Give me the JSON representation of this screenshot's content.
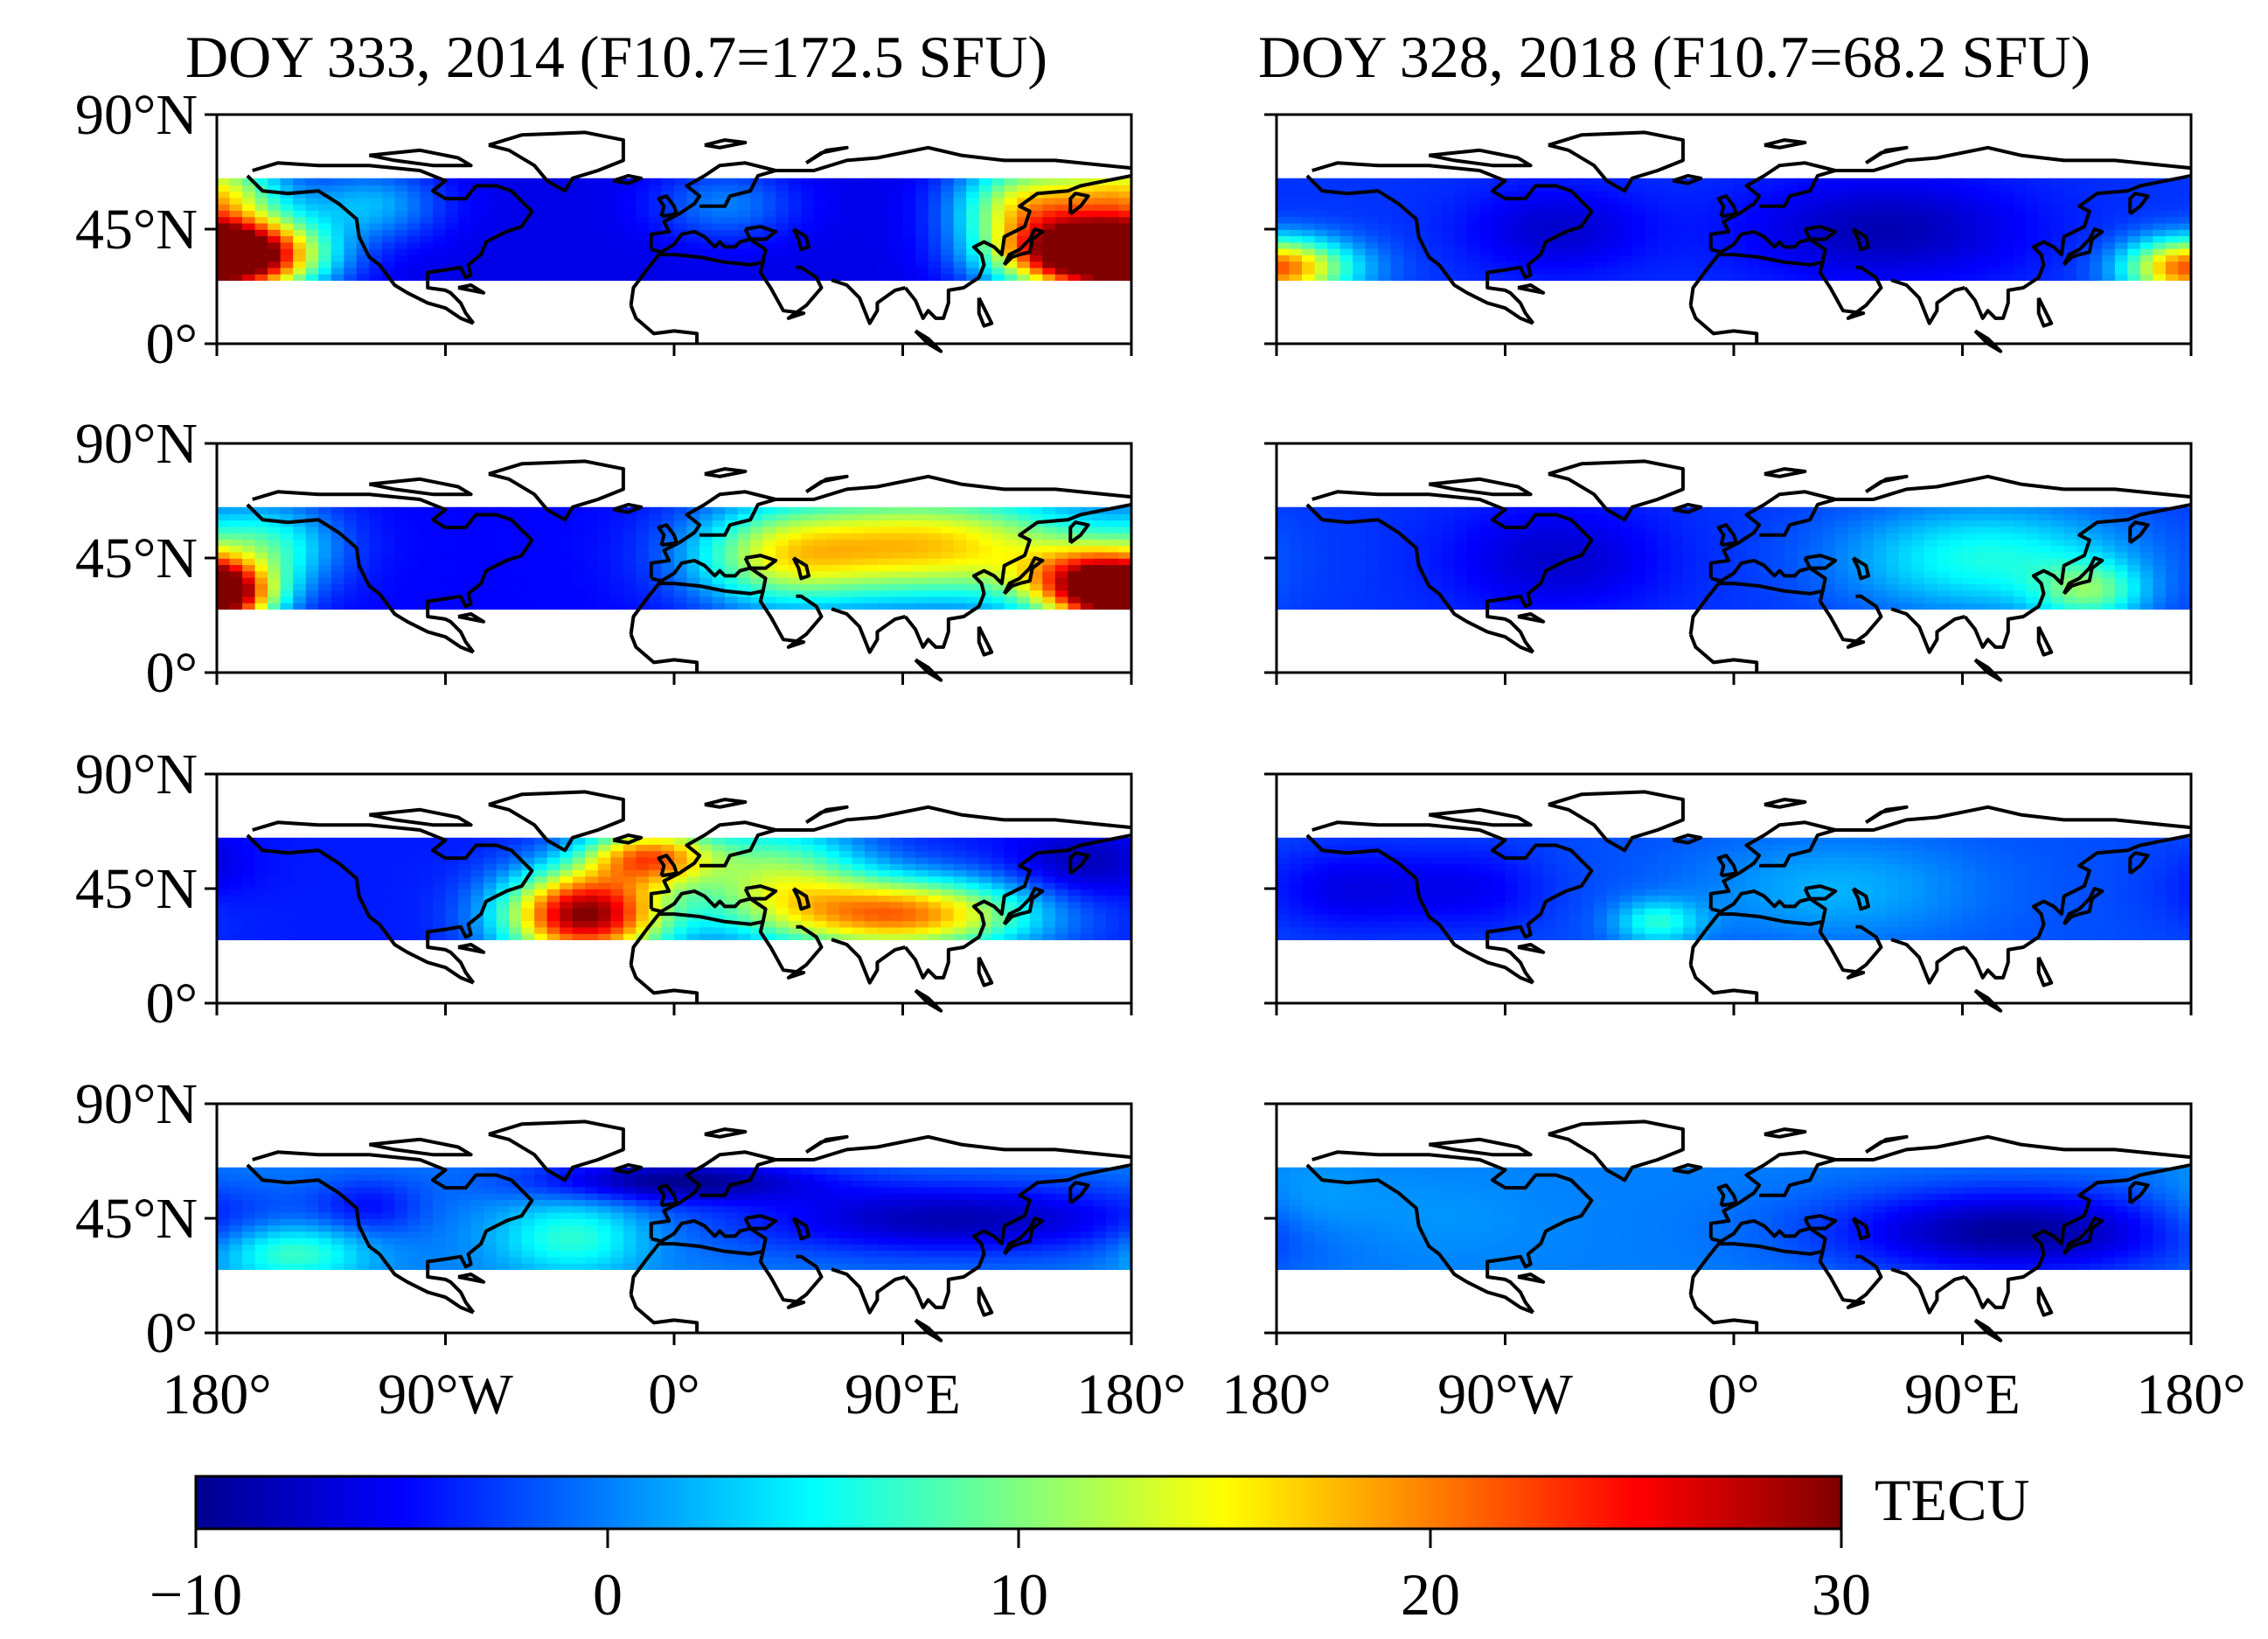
{
  "chart_data": {
    "type": "heatmap",
    "description_units": "TECU",
    "column_titles": [
      "DOY 333, 2014 (F10.7=172.5 SFU)",
      "DOY 328, 2018 (F10.7=68.2 SFU)"
    ],
    "rows": 4,
    "lat_ticks": [
      "90°N",
      "45°N",
      "0°"
    ],
    "lon_ticks": [
      "180°",
      "90°W",
      "0°",
      "90°E",
      "180°"
    ],
    "lon_range": [
      -180,
      180
    ],
    "lat_range": [
      0,
      90
    ],
    "data_lat_band": [
      25,
      65
    ],
    "colorbar": {
      "label": "TECU",
      "range": [
        -10,
        30
      ],
      "ticks": [
        "−10",
        "0",
        "10",
        "20",
        "30"
      ],
      "colormap": "jet"
    },
    "panels": [
      {
        "name": "2014-row1",
        "base": -6,
        "blobs": [
          {
            "lon": -170,
            "lat": 35,
            "amp": 34,
            "slon": 22,
            "slat": 10
          },
          {
            "lon": -180,
            "lat": 60,
            "amp": 18,
            "slon": 18,
            "slat": 10
          },
          {
            "lon": 160,
            "lat": 35,
            "amp": 34,
            "slon": 24,
            "slat": 10
          },
          {
            "lon": 140,
            "lat": 55,
            "amp": 20,
            "slon": 20,
            "slat": 12
          },
          {
            "lon": -120,
            "lat": 55,
            "amp": 8,
            "slon": 20,
            "slat": 10
          },
          {
            "lon": 20,
            "lat": 55,
            "amp": 6,
            "slon": 20,
            "slat": 10
          }
        ]
      },
      {
        "name": "2014-row2",
        "base": -5,
        "blobs": [
          {
            "lon": -180,
            "lat": 30,
            "amp": 28,
            "slon": 15,
            "slat": 8
          },
          {
            "lon": -160,
            "lat": 50,
            "amp": 10,
            "slon": 20,
            "slat": 12
          },
          {
            "lon": 100,
            "lat": 50,
            "amp": 22,
            "slon": 45,
            "slat": 15
          },
          {
            "lon": 165,
            "lat": 35,
            "amp": 26,
            "slon": 20,
            "slat": 10
          },
          {
            "lon": 40,
            "lat": 45,
            "amp": 12,
            "slon": 25,
            "slat": 14
          }
        ]
      },
      {
        "name": "2014-row3",
        "base": -4,
        "blobs": [
          {
            "lon": -35,
            "lat": 35,
            "amp": 34,
            "slon": 22,
            "slat": 12
          },
          {
            "lon": -10,
            "lat": 58,
            "amp": 22,
            "slon": 18,
            "slat": 8
          },
          {
            "lon": 90,
            "lat": 35,
            "amp": 24,
            "slon": 35,
            "slat": 10
          },
          {
            "lon": 40,
            "lat": 50,
            "amp": 14,
            "slon": 25,
            "slat": 15
          },
          {
            "lon": 160,
            "lat": 55,
            "amp": -4,
            "slon": 20,
            "slat": 10
          }
        ]
      },
      {
        "name": "2014-row4",
        "base": 0,
        "blobs": [
          {
            "lon": -150,
            "lat": 32,
            "amp": 8,
            "slon": 20,
            "slat": 8
          },
          {
            "lon": -40,
            "lat": 38,
            "amp": 7,
            "slon": 20,
            "slat": 10
          },
          {
            "lon": 0,
            "lat": 60,
            "amp": -9,
            "slon": 40,
            "slat": 6
          },
          {
            "lon": 110,
            "lat": 45,
            "amp": -8,
            "slon": 60,
            "slat": 10
          },
          {
            "lon": -120,
            "lat": 50,
            "amp": -4,
            "slon": 15,
            "slat": 8
          }
        ]
      },
      {
        "name": "2018-row1",
        "base": -3,
        "blobs": [
          {
            "lon": -175,
            "lat": 30,
            "amp": 16,
            "slon": 20,
            "slat": 8
          },
          {
            "lon": 175,
            "lat": 30,
            "amp": 10,
            "slon": 15,
            "slat": 8
          },
          {
            "lon": 60,
            "lat": 45,
            "amp": -5,
            "slon": 40,
            "slat": 15
          },
          {
            "lon": -70,
            "lat": 45,
            "amp": -4,
            "slon": 25,
            "slat": 12
          }
        ]
      },
      {
        "name": "2018-row2",
        "base": -3,
        "blobs": [
          {
            "lon": 100,
            "lat": 45,
            "amp": 9,
            "slon": 40,
            "slat": 15
          },
          {
            "lon": 140,
            "lat": 32,
            "amp": 10,
            "slon": 15,
            "slat": 8
          },
          {
            "lon": -70,
            "lat": 45,
            "amp": -4,
            "slon": 30,
            "slat": 15
          }
        ]
      },
      {
        "name": "2018-row3",
        "base": -2,
        "blobs": [
          {
            "lon": -30,
            "lat": 32,
            "amp": 8,
            "slon": 12,
            "slat": 6
          },
          {
            "lon": 40,
            "lat": 45,
            "amp": 4,
            "slon": 40,
            "slat": 15
          },
          {
            "lon": -150,
            "lat": 45,
            "amp": -4,
            "slon": 25,
            "slat": 12
          },
          {
            "lon": -100,
            "lat": 45,
            "amp": -3,
            "slon": 20,
            "slat": 12
          }
        ]
      },
      {
        "name": "2018-row4",
        "base": 0,
        "blobs": [
          {
            "lon": 110,
            "lat": 40,
            "amp": -9,
            "slon": 50,
            "slat": 12
          },
          {
            "lon": -120,
            "lat": 45,
            "amp": 1,
            "slon": 30,
            "slat": 12
          },
          {
            "lon": -170,
            "lat": 50,
            "amp": 2,
            "slon": 20,
            "slat": 12
          }
        ]
      }
    ]
  }
}
